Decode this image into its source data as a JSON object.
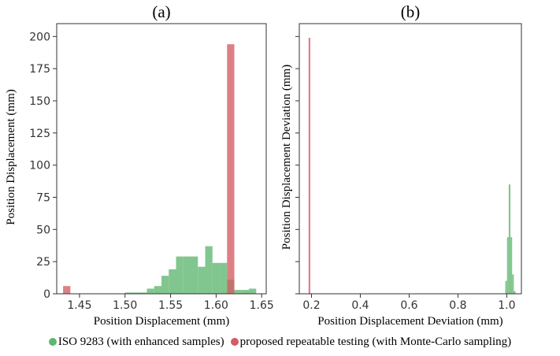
{
  "colors": {
    "iso": "#5fb66f",
    "proposed": "#d45c64"
  },
  "legend": {
    "iso_label": "ISO 9283 (with enhanced samples)",
    "proposed_label": "proposed repeatable testing (with Monte-Carlo sampling)"
  },
  "chart_data": [
    {
      "type": "bar",
      "panel": "(a)",
      "title": "(a)",
      "xlabel": "Position Displacement (mm)",
      "ylabel": "Position Displacement (mm)",
      "xlim": [
        1.425,
        1.655
      ],
      "ylim": [
        0,
        210
      ],
      "xticks": [
        1.45,
        1.5,
        1.55,
        1.6,
        1.65
      ],
      "xtick_labels": [
        "1.45",
        "1.50",
        "1.55",
        "1.60",
        "1.65"
      ],
      "yticks": [
        0,
        25,
        50,
        75,
        100,
        125,
        150,
        175,
        200
      ],
      "ytick_labels": [
        "0",
        "25",
        "50",
        "75",
        "100",
        "125",
        "150",
        "175",
        "200"
      ],
      "series": [
        {
          "name": "ISO 9283 (with enhanced samples)",
          "color_key": "iso",
          "bins": [
            {
              "x0": 1.5,
              "x1": 1.508,
              "value": 1
            },
            {
              "x0": 1.508,
              "x1": 1.516,
              "value": 1
            },
            {
              "x0": 1.516,
              "x1": 1.524,
              "value": 1
            },
            {
              "x0": 1.524,
              "x1": 1.532,
              "value": 4
            },
            {
              "x0": 1.532,
              "x1": 1.54,
              "value": 6
            },
            {
              "x0": 1.54,
              "x1": 1.548,
              "value": 14
            },
            {
              "x0": 1.548,
              "x1": 1.556,
              "value": 19
            },
            {
              "x0": 1.556,
              "x1": 1.564,
              "value": 29
            },
            {
              "x0": 1.564,
              "x1": 1.572,
              "value": 29
            },
            {
              "x0": 1.572,
              "x1": 1.58,
              "value": 29
            },
            {
              "x0": 1.58,
              "x1": 1.588,
              "value": 21
            },
            {
              "x0": 1.588,
              "x1": 1.596,
              "value": 37
            },
            {
              "x0": 1.596,
              "x1": 1.604,
              "value": 24
            },
            {
              "x0": 1.604,
              "x1": 1.612,
              "value": 24
            },
            {
              "x0": 1.612,
              "x1": 1.62,
              "value": 11
            },
            {
              "x0": 1.62,
              "x1": 1.628,
              "value": 3
            },
            {
              "x0": 1.628,
              "x1": 1.636,
              "value": 3
            },
            {
              "x0": 1.636,
              "x1": 1.644,
              "value": 4
            }
          ]
        },
        {
          "name": "proposed repeatable testing (with Monte-Carlo sampling)",
          "color_key": "proposed",
          "bins": [
            {
              "x0": 1.432,
              "x1": 1.44,
              "value": 6
            },
            {
              "x0": 1.612,
              "x1": 1.62,
              "value": 194
            }
          ]
        }
      ]
    },
    {
      "type": "bar",
      "panel": "(b)",
      "title": "(b)",
      "xlabel": "Position Displacement Deviation (mm)",
      "ylabel": "Position Displacement Deviation (mm)",
      "xlim": [
        0.15,
        1.06
      ],
      "ylim": [
        0,
        210
      ],
      "xticks": [
        0.2,
        0.4,
        0.6,
        0.8,
        1.0
      ],
      "xtick_labels": [
        "0.2",
        "0.4",
        "0.6",
        "0.8",
        "1.0"
      ],
      "yticks": [
        0,
        25,
        50,
        75,
        100,
        125,
        150,
        175,
        200
      ],
      "ytick_labels": [],
      "series": [
        {
          "name": "ISO 9283 (with enhanced samples)",
          "color_key": "iso",
          "bins": [
            {
              "x0": 0.994,
              "x1": 1.001,
              "value": 10
            },
            {
              "x0": 1.001,
              "x1": 1.008,
              "value": 44
            },
            {
              "x0": 1.008,
              "x1": 1.015,
              "value": 85
            },
            {
              "x0": 1.015,
              "x1": 1.022,
              "value": 44
            },
            {
              "x0": 1.022,
              "x1": 1.029,
              "value": 15
            },
            {
              "x0": 1.029,
              "x1": 1.036,
              "value": 2
            }
          ]
        },
        {
          "name": "proposed repeatable testing (with Monte-Carlo sampling)",
          "color_key": "proposed",
          "bins": [
            {
              "x0": 0.188,
              "x1": 0.195,
              "value": 199
            }
          ]
        }
      ]
    }
  ]
}
